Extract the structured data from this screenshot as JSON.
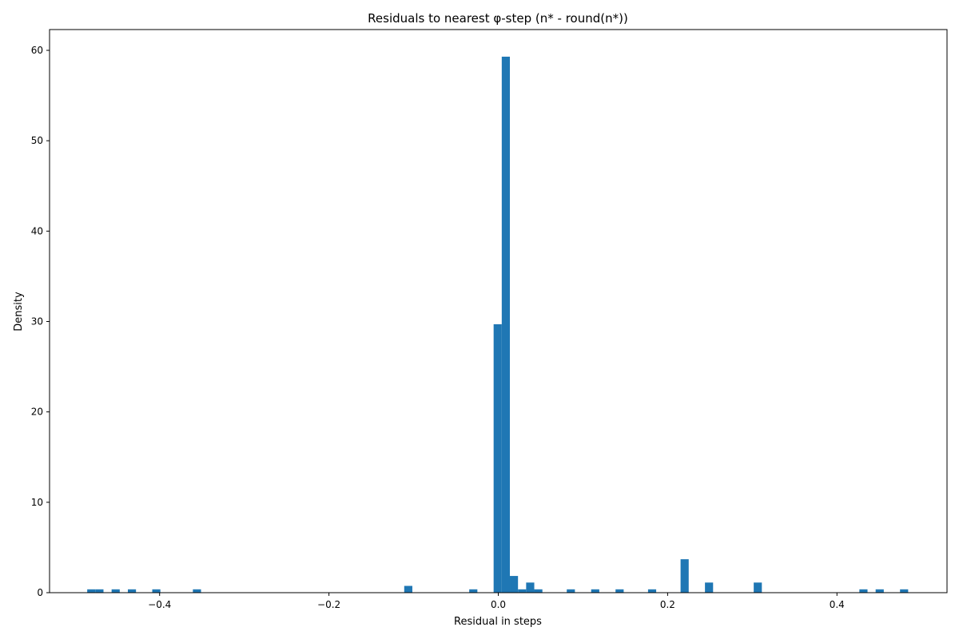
{
  "chart_data": {
    "type": "bar",
    "title": "Residuals to nearest φ-step (n* - round(n*))",
    "xlabel": "Residual in steps",
    "ylabel": "Density",
    "xlim": [
      -0.53,
      0.53
    ],
    "ylim": [
      0,
      62.3
    ],
    "xticks": [
      -0.4,
      -0.2,
      0.0,
      0.2,
      0.4
    ],
    "xtick_labels": [
      "−0.4",
      "−0.2",
      "0.0",
      "0.2",
      "0.4"
    ],
    "yticks": [
      0,
      10,
      20,
      30,
      40,
      50,
      60
    ],
    "ytick_labels": [
      "0",
      "10",
      "20",
      "30",
      "40",
      "50",
      "60"
    ],
    "bin_width": 0.0096,
    "color": "#1f77b4",
    "grid": false,
    "legend": "none",
    "bins": [
      {
        "x": -0.4855,
        "value": 0.37
      },
      {
        "x": -0.4759,
        "value": 0.37
      },
      {
        "x": -0.4567,
        "value": 0.37
      },
      {
        "x": -0.4375,
        "value": 0.37
      },
      {
        "x": -0.4087,
        "value": 0.37
      },
      {
        "x": -0.3607,
        "value": 0.37
      },
      {
        "x": -0.1111,
        "value": 0.75
      },
      {
        "x": -0.0343,
        "value": 0.37
      },
      {
        "x": -0.0055,
        "value": 29.7
      },
      {
        "x": 0.0041,
        "value": 59.3
      },
      {
        "x": 0.0137,
        "value": 1.85
      },
      {
        "x": 0.0233,
        "value": 0.37
      },
      {
        "x": 0.0329,
        "value": 1.12
      },
      {
        "x": 0.0425,
        "value": 0.37
      },
      {
        "x": 0.0809,
        "value": 0.37
      },
      {
        "x": 0.1097,
        "value": 0.37
      },
      {
        "x": 0.1385,
        "value": 0.37
      },
      {
        "x": 0.1769,
        "value": 0.37
      },
      {
        "x": 0.2153,
        "value": 3.7
      },
      {
        "x": 0.2441,
        "value": 1.12
      },
      {
        "x": 0.3017,
        "value": 1.12
      },
      {
        "x": 0.4265,
        "value": 0.37
      },
      {
        "x": 0.4457,
        "value": 0.37
      },
      {
        "x": 0.4745,
        "value": 0.37
      }
    ]
  }
}
